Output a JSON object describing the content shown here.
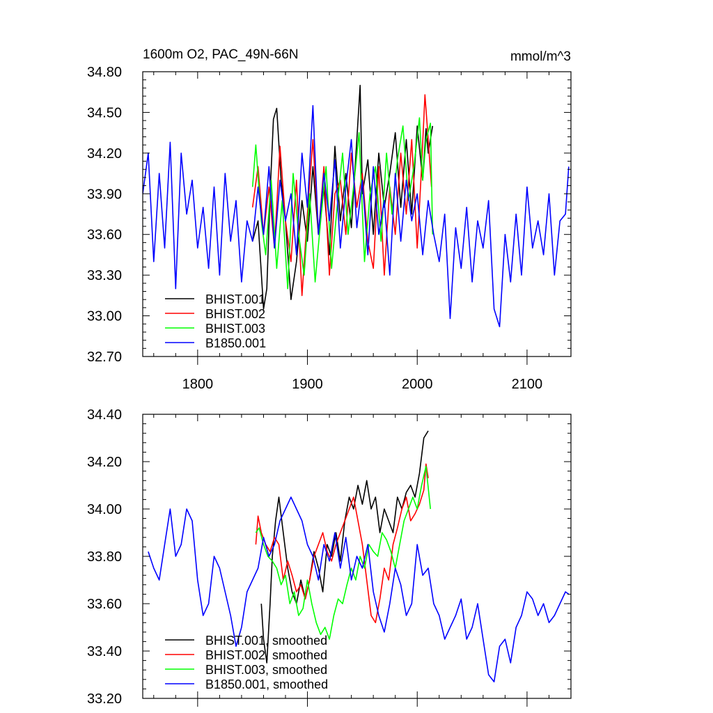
{
  "chart_data": [
    {
      "type": "line",
      "title": "1600m O2, PAC_49N-66N",
      "units": "mmol/m^3",
      "xlabel": "",
      "ylabel": "",
      "xlim": [
        1750,
        2140
      ],
      "ylim": [
        32.7,
        34.8
      ],
      "x_ticks": [
        1800,
        1900,
        2000,
        2100
      ],
      "x_tick_labels": [
        "1800",
        "1900",
        "2000",
        "2100"
      ],
      "y_ticks": [
        32.7,
        33.0,
        33.3,
        33.6,
        33.9,
        34.2,
        34.5,
        34.8
      ],
      "y_tick_labels": [
        "32.70",
        "33.00",
        "33.30",
        "33.60",
        "33.90",
        "34.20",
        "34.50",
        "34.80"
      ],
      "legend": "bottom-left",
      "series": [
        {
          "name": "BHIST.001",
          "color": "#000000",
          "x": [
            1850,
            1855,
            1860,
            1863,
            1866,
            1869,
            1872,
            1876,
            1880,
            1885,
            1890,
            1895,
            1900,
            1905,
            1910,
            1915,
            1920,
            1925,
            1930,
            1935,
            1940,
            1945,
            1948,
            1950,
            1955,
            1960,
            1965,
            1970,
            1975,
            1980,
            1985,
            1990,
            1995,
            2000,
            2005,
            2008,
            2010,
            2014
          ],
          "y": [
            33.55,
            33.7,
            33.05,
            33.2,
            33.9,
            34.45,
            34.53,
            34.0,
            33.7,
            33.12,
            33.4,
            33.85,
            33.55,
            34.1,
            33.6,
            33.95,
            33.45,
            34.25,
            33.7,
            34.05,
            33.65,
            34.3,
            34.7,
            33.9,
            34.15,
            33.6,
            34.2,
            33.8,
            34.05,
            34.35,
            33.8,
            34.3,
            33.75,
            34.4,
            34.0,
            34.38,
            34.2,
            34.4
          ]
        },
        {
          "name": "BHIST.002",
          "color": "#ff0000",
          "x": [
            1850,
            1855,
            1860,
            1865,
            1870,
            1875,
            1880,
            1885,
            1890,
            1895,
            1900,
            1905,
            1910,
            1915,
            1920,
            1925,
            1930,
            1935,
            1940,
            1945,
            1950,
            1955,
            1960,
            1965,
            1970,
            1975,
            1980,
            1985,
            1990,
            1995,
            2000,
            2004,
            2007,
            2010,
            2013
          ],
          "y": [
            33.8,
            34.1,
            33.6,
            33.95,
            33.5,
            34.25,
            33.7,
            33.4,
            34.0,
            33.15,
            33.75,
            34.3,
            33.6,
            34.1,
            33.3,
            33.9,
            34.0,
            33.6,
            34.2,
            33.8,
            34.05,
            33.55,
            33.35,
            34.1,
            33.3,
            33.95,
            33.6,
            34.2,
            33.75,
            34.3,
            33.5,
            34.1,
            34.63,
            34.3,
            33.95
          ]
        },
        {
          "name": "BHIST.003",
          "color": "#00ff00",
          "x": [
            1850,
            1853,
            1858,
            1862,
            1867,
            1872,
            1877,
            1882,
            1887,
            1892,
            1897,
            1902,
            1907,
            1912,
            1917,
            1922,
            1927,
            1932,
            1937,
            1942,
            1947,
            1952,
            1957,
            1962,
            1967,
            1972,
            1977,
            1982,
            1987,
            1992,
            1997,
            2002,
            2005,
            2008,
            2012,
            2014
          ],
          "y": [
            33.95,
            34.26,
            33.7,
            33.45,
            34.0,
            33.35,
            33.85,
            33.2,
            34.05,
            33.6,
            33.3,
            33.9,
            33.25,
            33.7,
            34.1,
            33.35,
            33.8,
            34.2,
            33.6,
            33.95,
            34.35,
            33.4,
            33.9,
            34.1,
            33.55,
            34.2,
            33.75,
            34.15,
            34.4,
            33.85,
            34.1,
            34.46,
            34.0,
            34.3,
            34.42,
            33.6
          ]
        },
        {
          "name": "B1850.001",
          "color": "#0000ff",
          "x": [
            1750,
            1755,
            1760,
            1765,
            1770,
            1775,
            1780,
            1785,
            1790,
            1795,
            1800,
            1805,
            1810,
            1815,
            1820,
            1825,
            1830,
            1835,
            1840,
            1845,
            1850,
            1855,
            1860,
            1865,
            1870,
            1875,
            1880,
            1885,
            1890,
            1895,
            1900,
            1905,
            1910,
            1915,
            1920,
            1925,
            1930,
            1935,
            1940,
            1945,
            1950,
            1955,
            1960,
            1965,
            1970,
            1975,
            1980,
            1985,
            1990,
            1995,
            2000,
            2005,
            2010,
            2015,
            2020,
            2025,
            2030,
            2035,
            2040,
            2045,
            2050,
            2055,
            2060,
            2065,
            2070,
            2075,
            2080,
            2085,
            2090,
            2095,
            2100,
            2105,
            2110,
            2115,
            2120,
            2125,
            2130,
            2135,
            2138
          ],
          "y": [
            33.9,
            34.2,
            33.4,
            34.05,
            33.5,
            34.28,
            33.2,
            34.2,
            33.75,
            34.0,
            33.5,
            33.8,
            33.35,
            33.95,
            33.3,
            34.05,
            33.55,
            33.85,
            33.25,
            33.7,
            33.55,
            33.95,
            33.6,
            34.1,
            33.5,
            34.0,
            33.7,
            33.9,
            33.45,
            34.2,
            33.8,
            34.55,
            33.6,
            34.05,
            33.7,
            34.15,
            33.5,
            33.95,
            34.3,
            33.65,
            34.0,
            33.45,
            34.1,
            33.6,
            33.85,
            33.3,
            34.05,
            33.55,
            34.0,
            33.7,
            33.9,
            33.45,
            33.85,
            33.6,
            33.4,
            33.75,
            32.98,
            33.65,
            33.35,
            33.8,
            33.25,
            33.7,
            33.5,
            33.85,
            33.05,
            32.92,
            33.6,
            33.25,
            33.75,
            33.3,
            33.95,
            33.5,
            33.7,
            33.45,
            33.9,
            33.3,
            33.7,
            33.75,
            34.1
          ]
        }
      ]
    },
    {
      "type": "line",
      "title": "",
      "xlabel": "",
      "ylabel": "",
      "xlim": [
        1750,
        2140
      ],
      "ylim": [
        33.2,
        34.4
      ],
      "x_ticks": [
        1800,
        1900,
        2000,
        2100
      ],
      "x_tick_labels": [],
      "y_ticks": [
        33.2,
        33.4,
        33.6,
        33.8,
        34.0,
        34.2,
        34.4
      ],
      "y_tick_labels": [
        "33.20",
        "33.40",
        "33.60",
        "33.80",
        "34.00",
        "34.20",
        "34.40"
      ],
      "legend": "bottom-left",
      "series": [
        {
          "name": "BHIST.001, smoothed",
          "color": "#000000",
          "x": [
            1858,
            1860,
            1863,
            1866,
            1868,
            1871,
            1874,
            1878,
            1882,
            1886,
            1890,
            1894,
            1898,
            1902,
            1906,
            1910,
            1914,
            1918,
            1922,
            1926,
            1930,
            1934,
            1938,
            1942,
            1946,
            1950,
            1954,
            1958,
            1962,
            1966,
            1970,
            1974,
            1978,
            1982,
            1986,
            1990,
            1994,
            1998,
            2002,
            2006,
            2010
          ],
          "y": [
            33.6,
            33.45,
            33.35,
            33.6,
            33.8,
            33.95,
            34.05,
            33.9,
            33.75,
            33.65,
            33.6,
            33.7,
            33.62,
            33.7,
            33.82,
            33.75,
            33.65,
            33.85,
            33.8,
            33.9,
            33.78,
            33.95,
            34.05,
            34.0,
            34.1,
            34.02,
            34.12,
            34.0,
            34.05,
            33.9,
            34.0,
            33.95,
            33.9,
            34.05,
            34.0,
            34.07,
            34.1,
            34.05,
            34.15,
            34.3,
            34.33
          ]
        },
        {
          "name": "BHIST.002, smoothed",
          "color": "#ff0000",
          "x": [
            1853,
            1855,
            1858,
            1862,
            1866,
            1870,
            1874,
            1878,
            1882,
            1886,
            1890,
            1894,
            1898,
            1902,
            1906,
            1910,
            1914,
            1918,
            1922,
            1926,
            1930,
            1934,
            1938,
            1942,
            1946,
            1950,
            1954,
            1958,
            1962,
            1966,
            1970,
            1974,
            1978,
            1982,
            1986,
            1990,
            1994,
            1998,
            2002,
            2006,
            2008,
            2010
          ],
          "y": [
            33.85,
            33.97,
            33.9,
            33.85,
            33.82,
            33.88,
            33.85,
            33.7,
            33.78,
            33.72,
            33.65,
            33.68,
            33.62,
            33.7,
            33.8,
            33.85,
            33.9,
            33.82,
            33.78,
            33.85,
            33.9,
            33.95,
            34.0,
            34.05,
            33.95,
            33.85,
            33.7,
            33.55,
            33.52,
            33.62,
            33.75,
            33.7,
            33.85,
            33.92,
            34.0,
            34.05,
            33.95,
            33.98,
            34.02,
            34.08,
            34.19,
            34.13
          ]
        },
        {
          "name": "BHIST.003, smoothed",
          "color": "#00ff00",
          "x": [
            1853,
            1856,
            1860,
            1864,
            1868,
            1872,
            1876,
            1880,
            1884,
            1888,
            1892,
            1896,
            1900,
            1904,
            1908,
            1912,
            1916,
            1920,
            1924,
            1928,
            1932,
            1936,
            1940,
            1944,
            1948,
            1952,
            1956,
            1960,
            1964,
            1968,
            1972,
            1976,
            1980,
            1984,
            1988,
            1992,
            1996,
            2000,
            2004,
            2008,
            2012
          ],
          "y": [
            33.9,
            33.92,
            33.85,
            33.8,
            33.78,
            33.75,
            33.68,
            33.72,
            33.6,
            33.65,
            33.55,
            33.58,
            33.7,
            33.6,
            33.52,
            33.47,
            33.5,
            33.45,
            33.55,
            33.62,
            33.6,
            33.68,
            33.75,
            33.7,
            33.8,
            33.75,
            33.85,
            33.82,
            33.8,
            33.9,
            33.87,
            33.82,
            33.75,
            33.85,
            33.95,
            34.0,
            34.05,
            34.0,
            34.1,
            34.18,
            34.0
          ]
        },
        {
          "name": "B1850.001, smoothed",
          "color": "#0000ff",
          "x": [
            1755,
            1760,
            1765,
            1770,
            1775,
            1780,
            1785,
            1790,
            1795,
            1800,
            1805,
            1810,
            1815,
            1820,
            1825,
            1830,
            1835,
            1840,
            1845,
            1850,
            1855,
            1860,
            1865,
            1870,
            1875,
            1880,
            1885,
            1890,
            1895,
            1900,
            1905,
            1910,
            1915,
            1920,
            1925,
            1930,
            1935,
            1940,
            1945,
            1950,
            1955,
            1960,
            1965,
            1970,
            1975,
            1980,
            1985,
            1990,
            1995,
            2000,
            2005,
            2010,
            2015,
            2020,
            2025,
            2030,
            2035,
            2040,
            2045,
            2050,
            2055,
            2060,
            2065,
            2070,
            2075,
            2080,
            2085,
            2090,
            2095,
            2100,
            2105,
            2110,
            2115,
            2120,
            2125,
            2130,
            2135,
            2138
          ],
          "y": [
            33.82,
            33.75,
            33.7,
            33.85,
            34.0,
            33.8,
            33.85,
            34.0,
            33.95,
            33.7,
            33.55,
            33.6,
            33.8,
            33.75,
            33.65,
            33.55,
            33.42,
            33.5,
            33.65,
            33.7,
            33.75,
            33.88,
            33.8,
            33.85,
            33.95,
            34.0,
            34.05,
            34.0,
            33.95,
            33.85,
            33.8,
            33.7,
            33.85,
            33.78,
            33.9,
            33.75,
            33.88,
            33.7,
            33.8,
            33.75,
            33.85,
            33.65,
            33.55,
            33.48,
            33.6,
            33.75,
            33.68,
            33.55,
            33.6,
            33.85,
            33.72,
            33.75,
            33.6,
            33.55,
            33.45,
            33.5,
            33.55,
            33.62,
            33.45,
            33.5,
            33.6,
            33.45,
            33.3,
            33.27,
            33.42,
            33.45,
            33.35,
            33.5,
            33.55,
            33.65,
            33.62,
            33.55,
            33.6,
            33.52,
            33.55,
            33.6,
            33.65,
            33.64
          ]
        }
      ]
    }
  ]
}
